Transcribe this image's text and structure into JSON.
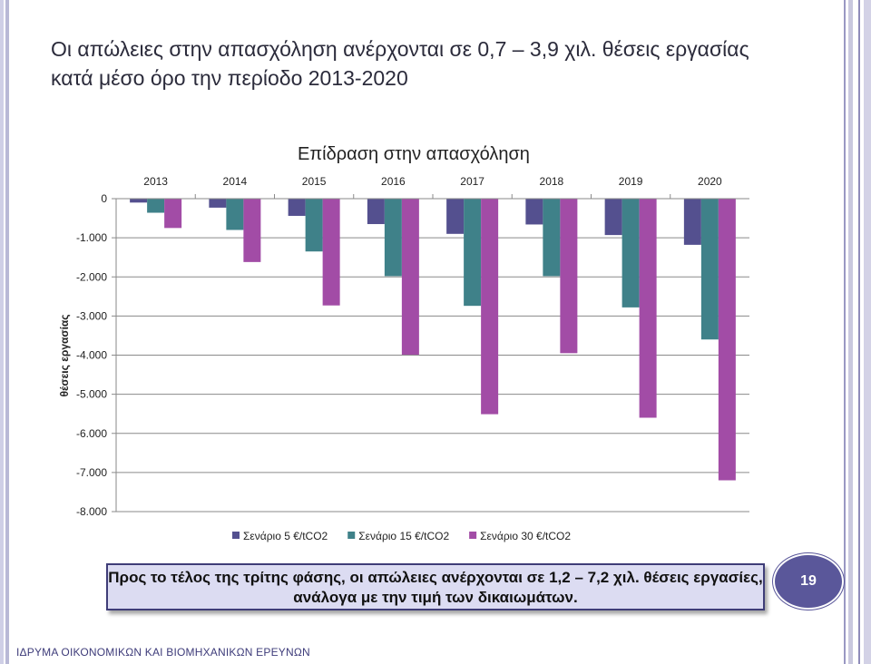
{
  "slide": {
    "title": "Οι απώλειες στην απασχόληση ανέρχονται σε 0,7 – 3,9 χιλ. θέσεις εργασίας κατά μέσο όρο την περίοδο 2013-2020",
    "callout_line1": "Προς το τέλος της τρίτης φάσης, οι απώλειες ανέρχονται σε 1,2 – 7,2 χιλ. θέσεις εργασίες,",
    "callout_line2": "ανάλογα με την τιμή των δικαιωμάτων.",
    "page_number": "19",
    "footer": "ΙΔΡΥΜΑ ΟΙΚΟΝΟΜΙΚΩΝ ΚΑΙ ΒΙΟΜΗΧΑΝΙΚΩΝ ΕΡΕΥΝΩΝ"
  },
  "chart_data": {
    "type": "bar",
    "title": "Επίδραση στην απασχόληση",
    "ylabel": "θέσεις εργασίας",
    "xlabel": "",
    "categories": [
      "2013",
      "2014",
      "2015",
      "2016",
      "2017",
      "2018",
      "2019",
      "2020"
    ],
    "series": [
      {
        "name": "Σενάριο 5 €/tCO2",
        "color": "#54508f",
        "values": [
          -100,
          -230,
          -440,
          -650,
          -900,
          -660,
          -930,
          -1180
        ]
      },
      {
        "name": "Σενάριο 15 €/tCO2",
        "color": "#3f8189",
        "values": [
          -360,
          -800,
          -1350,
          -1980,
          -2740,
          -1980,
          -2780,
          -3600
        ]
      },
      {
        "name": "Σενάριο 30 €/tCO2",
        "color": "#a24ca6",
        "values": [
          -750,
          -1620,
          -2730,
          -3990,
          -5510,
          -3950,
          -5600,
          -7200
        ]
      }
    ],
    "ylim": [
      -8000,
      0
    ],
    "yticks": [
      0,
      -1000,
      -2000,
      -3000,
      -4000,
      -5000,
      -6000,
      -7000,
      -8000
    ],
    "ytick_labels": [
      "0",
      "-1.000",
      "-2.000",
      "-3.000",
      "-4.000",
      "-5.000",
      "-6.000",
      "-7.000",
      "-8.000"
    ],
    "grid": "horizontal",
    "legend_position": "bottom"
  }
}
